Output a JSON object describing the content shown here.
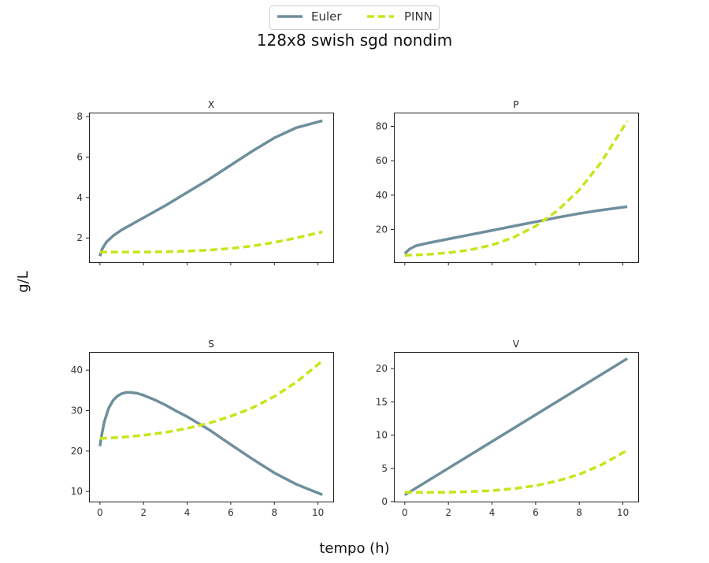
{
  "figure": {
    "suptitle": "128x8 swish sgd nondim",
    "xlabel": "tempo (h)",
    "ylabel": "g/L"
  },
  "legend": {
    "placement": "top-center",
    "entries": [
      {
        "label": "Euler",
        "color": "#6e8f9c",
        "style": "solid"
      },
      {
        "label": "PINN",
        "color": "#c8e519",
        "style": "dashed"
      }
    ]
  },
  "chart_data": [
    {
      "type": "line",
      "title": "X",
      "xlim": [
        -0.5,
        10.7
      ],
      "ylim": [
        0.8,
        8.2
      ],
      "xticks": [
        0,
        2,
        4,
        6,
        8,
        10
      ],
      "yticks": [
        2,
        4,
        6,
        8
      ],
      "show_xticklabels": false,
      "grid": false,
      "series": [
        {
          "name": "Euler",
          "x": [
            0,
            0.1,
            0.3,
            0.6,
            1,
            1.5,
            2,
            3,
            4,
            5,
            6,
            7,
            8,
            9,
            10.2
          ],
          "y": [
            1.1,
            1.45,
            1.8,
            2.1,
            2.4,
            2.7,
            3.0,
            3.6,
            4.25,
            4.9,
            5.6,
            6.3,
            6.95,
            7.45,
            7.8
          ]
        },
        {
          "name": "PINN",
          "x": [
            0,
            1,
            2,
            3,
            4,
            5,
            6,
            7,
            8,
            9,
            10.2
          ],
          "y": [
            1.3,
            1.3,
            1.3,
            1.32,
            1.35,
            1.4,
            1.48,
            1.6,
            1.78,
            2.0,
            2.3
          ]
        }
      ]
    },
    {
      "type": "line",
      "title": "P",
      "xlim": [
        -0.5,
        10.7
      ],
      "ylim": [
        1,
        88
      ],
      "xticks": [
        0,
        2,
        4,
        6,
        8,
        10
      ],
      "yticks": [
        20,
        40,
        60,
        80
      ],
      "show_xticklabels": false,
      "grid": false,
      "series": [
        {
          "name": "Euler",
          "x": [
            0,
            0.2,
            0.5,
            1,
            2,
            3,
            4,
            5,
            6,
            7,
            8,
            9,
            10.2
          ],
          "y": [
            6,
            8.5,
            10.5,
            12,
            14.5,
            17,
            19.5,
            22,
            24.5,
            27,
            29.3,
            31.3,
            33.3
          ]
        },
        {
          "name": "PINN",
          "x": [
            0,
            1,
            2,
            3,
            4,
            5,
            6,
            7,
            8,
            9,
            10.2
          ],
          "y": [
            5,
            5.5,
            6.5,
            8.2,
            11,
            15.5,
            22,
            31,
            43,
            59,
            83
          ]
        }
      ]
    },
    {
      "type": "line",
      "title": "S",
      "xlim": [
        -0.5,
        10.7
      ],
      "ylim": [
        7.5,
        44.5
      ],
      "xticks": [
        0,
        2,
        4,
        6,
        8,
        10
      ],
      "yticks": [
        10,
        20,
        30,
        40
      ],
      "show_xticklabels": true,
      "grid": false,
      "series": [
        {
          "name": "Euler",
          "x": [
            0,
            0.1,
            0.2,
            0.4,
            0.6,
            0.8,
            1.0,
            1.2,
            1.4,
            1.7,
            2,
            2.5,
            3,
            3.5,
            4,
            5,
            6,
            7,
            8,
            9,
            10.2
          ],
          "y": [
            21.2,
            24.5,
            27.2,
            30.6,
            32.5,
            33.6,
            34.2,
            34.5,
            34.5,
            34.3,
            33.8,
            32.7,
            31.4,
            29.9,
            28.5,
            25.3,
            21.6,
            18.0,
            14.6,
            11.8,
            9.2
          ]
        },
        {
          "name": "PINN",
          "x": [
            0,
            1,
            2,
            3,
            4,
            5,
            6,
            7,
            8,
            9,
            10.2
          ],
          "y": [
            23.1,
            23.4,
            23.9,
            24.6,
            25.6,
            26.9,
            28.6,
            30.7,
            33.5,
            37.0,
            42.3
          ]
        }
      ]
    },
    {
      "type": "line",
      "title": "V",
      "xlim": [
        -0.5,
        10.7
      ],
      "ylim": [
        0,
        22.5
      ],
      "xticks": [
        0,
        2,
        4,
        6,
        8,
        10
      ],
      "yticks": [
        0,
        5,
        10,
        15,
        20
      ],
      "show_xticklabels": true,
      "grid": false,
      "series": [
        {
          "name": "Euler",
          "x": [
            0,
            10.2
          ],
          "y": [
            1.0,
            21.5
          ]
        },
        {
          "name": "PINN",
          "x": [
            0,
            1,
            2,
            3,
            4,
            5,
            6,
            7,
            8,
            9,
            10.2
          ],
          "y": [
            1.4,
            1.38,
            1.4,
            1.5,
            1.65,
            1.95,
            2.4,
            3.1,
            4.1,
            5.5,
            7.7
          ]
        }
      ]
    }
  ]
}
